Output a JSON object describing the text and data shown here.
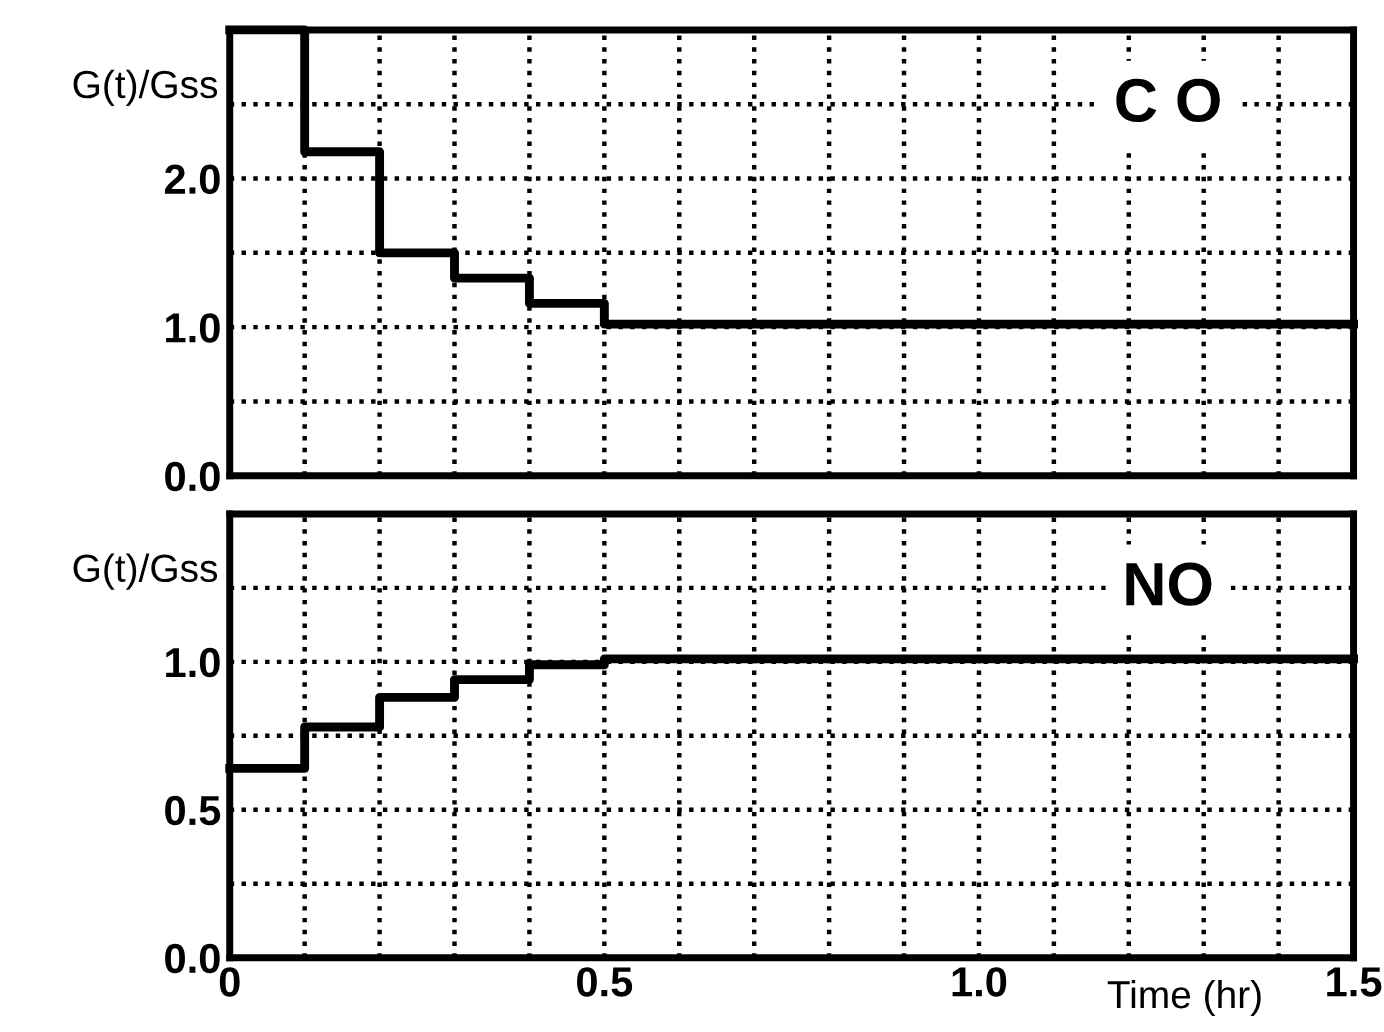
{
  "chart_data": [
    {
      "type": "step",
      "ylabel": "G(t)/Gss",
      "x": [
        0,
        0.1,
        0.2,
        0.3,
        0.4,
        0.5,
        1.5
      ],
      "series": [
        {
          "color": "#000000",
          "values": [
            3.0,
            2.18,
            1.5,
            1.33,
            1.16,
            1.02,
            1.02
          ]
        }
      ],
      "xlim": [
        0,
        1.5
      ],
      "ylim": [
        0,
        3.0
      ],
      "xticks": [
        0,
        0.1,
        0.2,
        0.3,
        0.4,
        0.5,
        0.6,
        0.7,
        0.8,
        0.9,
        1.0,
        1.1,
        1.2,
        1.3,
        1.4,
        1.5
      ],
      "yticks": [
        {
          "value": 0,
          "label": "0.0"
        },
        {
          "value": 0.5,
          "label": null
        },
        {
          "value": 1.0,
          "label": "1.0"
        },
        {
          "value": 1.5,
          "label": null
        },
        {
          "value": 2.0,
          "label": "2.0"
        },
        {
          "value": 2.5,
          "label": null
        }
      ],
      "tick_labels": "y",
      "grid": true,
      "line_style": "solid",
      "annotations": [
        "C O"
      ]
    },
    {
      "type": "step",
      "ylabel": "G(t)/Gss",
      "xlabel": "Time (hr)",
      "x": [
        0,
        0.1,
        0.2,
        0.3,
        0.4,
        0.5,
        1.5
      ],
      "series": [
        {
          "color": "#000000",
          "values": [
            0.64,
            0.78,
            0.88,
            0.94,
            0.99,
            1.01,
            1.01
          ]
        }
      ],
      "xlim": [
        0,
        1.5
      ],
      "ylim": [
        0,
        1.5
      ],
      "xticks": [
        0,
        {
          "value": 0.1,
          "label": null
        },
        {
          "value": 0.2,
          "label": null
        },
        {
          "value": 0.3,
          "label": null
        },
        {
          "value": 0.4,
          "label": null
        },
        0.5,
        {
          "value": 0.6,
          "label": null
        },
        {
          "value": 0.7,
          "label": null
        },
        {
          "value": 0.8,
          "label": null
        },
        {
          "value": 0.9,
          "label": null
        },
        {
          "value": 1.0,
          "label": "1.0"
        },
        {
          "value": 1.1,
          "label": null
        },
        {
          "value": 1.2,
          "label": null
        },
        {
          "value": 1.3,
          "label": null
        },
        {
          "value": 1.4,
          "label": null
        },
        1.5
      ],
      "yticks": [
        {
          "value": 0,
          "label": "0.0"
        },
        {
          "value": 0.25,
          "label": null
        },
        0.5,
        {
          "value": 0.75,
          "label": null
        },
        {
          "value": 1.0,
          "label": "1.0"
        },
        {
          "value": 1.25,
          "label": null
        }
      ],
      "grid": true,
      "line_style": "solid",
      "annotations": [
        "NO"
      ]
    }
  ]
}
